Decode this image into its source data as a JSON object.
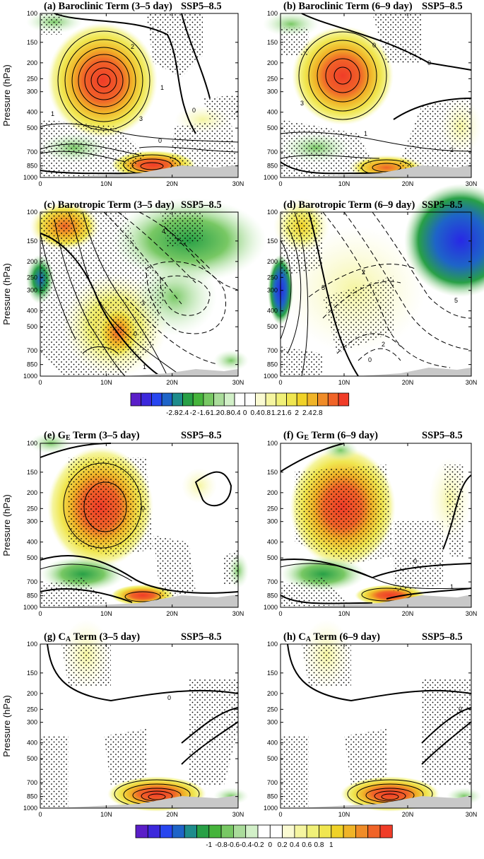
{
  "figure": {
    "pressure_levels": [
      100,
      150,
      200,
      250,
      300,
      400,
      500,
      700,
      850,
      1000
    ],
    "lat_labels": [
      "0",
      "10N",
      "20N",
      "30N"
    ],
    "y_axis_label": "Pressure (hPa)",
    "scenario": "SSP5–8.5"
  },
  "panels": [
    {
      "id": "a",
      "title": "(a) Baroclinic Term (3–5 day)",
      "scenario": "SSP5–8.5"
    },
    {
      "id": "b",
      "title": "(b) Baroclinic Term (6–9 day)",
      "scenario": "SSP5–8.5"
    },
    {
      "id": "c",
      "title": "(c) Barotropic Term (3–5 day)",
      "scenario": "SSP5–8.5"
    },
    {
      "id": "d",
      "title": "(d) Barotropic Term (6–9 day)",
      "scenario": "SSP5–8.5"
    },
    {
      "id": "e",
      "title_prefix": "(e) G",
      "title_sub": "E",
      "title_suffix": "  Term (3–5 day)",
      "scenario": "SSP5–8.5"
    },
    {
      "id": "f",
      "title_prefix": "(f) G",
      "title_sub": "E",
      "title_suffix": "  Term (6–9 day)",
      "scenario": "SSP5–8.5"
    },
    {
      "id": "g",
      "title_prefix": "(g) C",
      "title_sub": "A",
      "title_suffix": "  Term (3–5 day)",
      "scenario": "SSP5–8.5"
    },
    {
      "id": "h",
      "title_prefix": "(h) C",
      "title_sub": "A",
      "title_suffix": "  Term (6–9 day)",
      "scenario": "SSP5–8.5"
    }
  ],
  "contour_labels": {
    "a": [
      "2",
      "1",
      "1",
      "0",
      "0",
      "3"
    ],
    "b": [
      "0",
      "0",
      "1",
      "2",
      "3"
    ],
    "c": [
      "4",
      "3",
      "0",
      "1"
    ],
    "d": [
      "2",
      "5",
      "0",
      "2",
      "5"
    ],
    "e": [
      "0"
    ],
    "f": [
      "0",
      "1"
    ],
    "g": [
      "0"
    ],
    "h": [
      "0"
    ]
  },
  "colorbars": [
    {
      "labels": [
        "-2.8",
        "-2.4",
        "-2",
        "-1.6",
        "-1.2",
        "-0.8",
        "-0.4",
        "0",
        "0.4",
        "0.8",
        "1.2",
        "1.6",
        "2",
        "2.4",
        "2.8"
      ],
      "colors": [
        "#5a1ec8",
        "#3c28dc",
        "#2846f0",
        "#1e64c8",
        "#1e8c8c",
        "#28a046",
        "#46b43c",
        "#78c864",
        "#aadc9b",
        "#d2f0c8",
        "#ffffff",
        "#ffffff",
        "#fafad2",
        "#f5f5a0",
        "#f0f078",
        "#f0e650",
        "#f0d228",
        "#f0b428",
        "#f08c28",
        "#f06428",
        "#f03c28"
      ]
    },
    {
      "labels": [
        "-1",
        "-0.8",
        "-0.6",
        "-0.4",
        "-0.2",
        "0",
        "0.2",
        "0.4",
        "0.6",
        "0.8",
        "1"
      ],
      "colors": [
        "#5a1ec8",
        "#3c28dc",
        "#2846f0",
        "#1e64c8",
        "#1e8c8c",
        "#28a046",
        "#46b43c",
        "#78c864",
        "#aadc9b",
        "#d2f0c8",
        "#ffffff",
        "#ffffff",
        "#fafad2",
        "#f5f5a0",
        "#f0f078",
        "#f0e650",
        "#f0d228",
        "#f0b428",
        "#f08c28",
        "#f06428",
        "#f03c28"
      ]
    }
  ],
  "chart_data": [
    {
      "type": "heatmap",
      "panel": "a",
      "title": "(a) Baroclinic Term (3–5 day)",
      "xlabel": "",
      "ylabel": "Pressure (hPa)",
      "x_range": [
        0,
        30
      ],
      "y_range": [
        1000,
        100
      ],
      "features": [
        {
          "kind": "positive_max",
          "lat": 9.5,
          "p": 250,
          "value": 3.0
        },
        {
          "kind": "positive_max",
          "lat": 17,
          "p": 850,
          "value": 3.0
        },
        {
          "kind": "negative_min",
          "lat": 9,
          "p": 700,
          "value": -0.8
        }
      ]
    },
    {
      "type": "heatmap",
      "panel": "b",
      "title": "(b) Baroclinic Term (6–9 day)",
      "xlabel": "",
      "ylabel": "Pressure (hPa)",
      "x_range": [
        0,
        30
      ],
      "y_range": [
        1000,
        100
      ],
      "features": [
        {
          "kind": "positive_max",
          "lat": 9,
          "p": 250,
          "value": 3.0
        },
        {
          "kind": "positive_max",
          "lat": 17,
          "p": 850,
          "value": 2.6
        },
        {
          "kind": "negative_min",
          "lat": 9,
          "p": 700,
          "value": -0.6
        }
      ]
    },
    {
      "type": "heatmap",
      "panel": "c",
      "title": "(c) Barotropic Term (3–5 day)",
      "xlabel": "",
      "ylabel": "Pressure (hPa)",
      "x_range": [
        0,
        30
      ],
      "y_range": [
        1000,
        100
      ],
      "features": [
        {
          "kind": "positive_max",
          "lat": 11,
          "p": 500,
          "value": 2.0
        },
        {
          "kind": "positive_max",
          "lat": 3,
          "p": 120,
          "value": 2.4
        },
        {
          "kind": "negative_min",
          "lat": 24,
          "p": 150,
          "value": -1.6
        },
        {
          "kind": "negative_min",
          "lat": 0,
          "p": 250,
          "value": -1.6
        }
      ]
    },
    {
      "type": "heatmap",
      "panel": "d",
      "title": "(d) Barotropic Term (6–9 day)",
      "xlabel": "",
      "ylabel": "Pressure (hPa)",
      "x_range": [
        0,
        30
      ],
      "y_range": [
        1000,
        100
      ],
      "features": [
        {
          "kind": "positive_max",
          "lat": 12,
          "p": 300,
          "value": 1.0
        },
        {
          "kind": "positive_max",
          "lat": 2,
          "p": 130,
          "value": 1.6
        },
        {
          "kind": "negative_min",
          "lat": 28,
          "p": 120,
          "value": -3.0
        },
        {
          "kind": "negative_min",
          "lat": 0,
          "p": 250,
          "value": -2.4
        }
      ]
    },
    {
      "type": "heatmap",
      "panel": "e",
      "title": "(e) GE Term (3–5 day)",
      "xlabel": "",
      "ylabel": "Pressure (hPa)",
      "x_range": [
        0,
        30
      ],
      "y_range": [
        1000,
        100
      ],
      "features": [
        {
          "kind": "positive_max",
          "lat": 9,
          "p": 250,
          "value": 1.0
        },
        {
          "kind": "positive_max",
          "lat": 16,
          "p": 850,
          "value": 1.0
        },
        {
          "kind": "negative_min",
          "lat": 9,
          "p": 700,
          "value": -0.5
        }
      ]
    },
    {
      "type": "heatmap",
      "panel": "f",
      "title": "(f) GE Term (6–9 day)",
      "xlabel": "",
      "ylabel": "Pressure (hPa)",
      "x_range": [
        0,
        30
      ],
      "y_range": [
        1000,
        100
      ],
      "features": [
        {
          "kind": "positive_max",
          "lat": 9,
          "p": 250,
          "value": 1.0
        },
        {
          "kind": "positive_max",
          "lat": 17,
          "p": 850,
          "value": 1.0
        },
        {
          "kind": "negative_min",
          "lat": 9,
          "p": 700,
          "value": -0.6
        }
      ]
    },
    {
      "type": "heatmap",
      "panel": "g",
      "title": "(g) CA Term (3–5 day)",
      "xlabel": "",
      "ylabel": "Pressure (hPa)",
      "x_range": [
        0,
        30
      ],
      "y_range": [
        1000,
        100
      ],
      "features": [
        {
          "kind": "positive_max",
          "lat": 18,
          "p": 850,
          "value": 1.0
        },
        {
          "kind": "positive_max",
          "lat": 4,
          "p": 120,
          "value": 0.2
        }
      ]
    },
    {
      "type": "heatmap",
      "panel": "h",
      "title": "(h) CA Term (6–9 day)",
      "xlabel": "",
      "ylabel": "Pressure (hPa)",
      "x_range": [
        0,
        30
      ],
      "y_range": [
        1000,
        100
      ],
      "features": [
        {
          "kind": "positive_max",
          "lat": 18,
          "p": 850,
          "value": 1.0
        },
        {
          "kind": "positive_max",
          "lat": 4,
          "p": 120,
          "value": 0.2
        }
      ]
    }
  ]
}
